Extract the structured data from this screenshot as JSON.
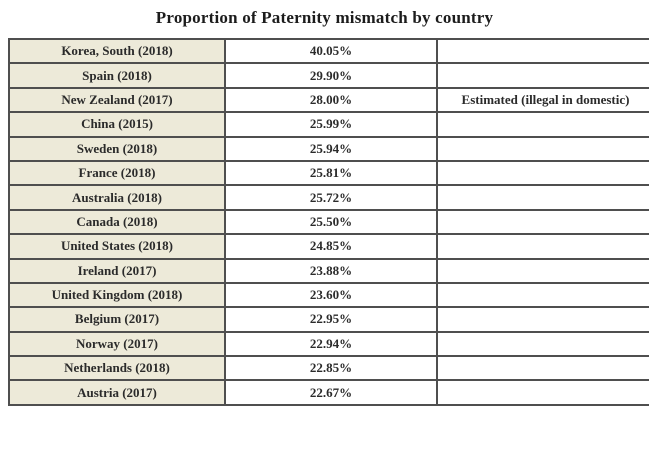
{
  "title": "Proportion of Paternity mismatch by country",
  "table": {
    "rows": [
      {
        "country": "Korea, South (2018)",
        "value": "40.05%",
        "note": ""
      },
      {
        "country": "Spain (2018)",
        "value": "29.90%",
        "note": ""
      },
      {
        "country": "New Zealand (2017)",
        "value": "28.00%",
        "note": "Estimated (illegal in domestic)"
      },
      {
        "country": "China (2015)",
        "value": "25.99%",
        "note": ""
      },
      {
        "country": "Sweden (2018)",
        "value": "25.94%",
        "note": ""
      },
      {
        "country": "France (2018)",
        "value": "25.81%",
        "note": ""
      },
      {
        "country": "Australia (2018)",
        "value": "25.72%",
        "note": ""
      },
      {
        "country": "Canada (2018)",
        "value": "25.50%",
        "note": ""
      },
      {
        "country": "United States (2018)",
        "value": "24.85%",
        "note": ""
      },
      {
        "country": "Ireland (2017)",
        "value": "23.88%",
        "note": ""
      },
      {
        "country": "United Kingdom (2018)",
        "value": "23.60%",
        "note": ""
      },
      {
        "country": "Belgium (2017)",
        "value": "22.95%",
        "note": ""
      },
      {
        "country": "Norway (2017)",
        "value": "22.94%",
        "note": ""
      },
      {
        "country": "Netherlands (2018)",
        "value": "22.85%",
        "note": ""
      },
      {
        "country": "Austria (2017)",
        "value": "22.67%",
        "note": ""
      }
    ]
  },
  "colors": {
    "country_column_bg": "#edead9",
    "grid_border": "#4f4f4f",
    "text": "#2b2b2b",
    "page_bg": "#ffffff"
  },
  "chart_data": {
    "type": "table",
    "title": "Proportion of Paternity mismatch by country",
    "categories": [
      "Korea, South (2018)",
      "Spain (2018)",
      "New Zealand (2017)",
      "China (2015)",
      "Sweden (2018)",
      "France (2018)",
      "Australia (2018)",
      "Canada (2018)",
      "United States (2018)",
      "Ireland (2017)",
      "United Kingdom (2018)",
      "Belgium (2017)",
      "Norway (2017)",
      "Netherlands (2018)",
      "Austria (2017)"
    ],
    "values": [
      40.05,
      29.9,
      28.0,
      25.99,
      25.94,
      25.81,
      25.72,
      25.5,
      24.85,
      23.88,
      23.6,
      22.95,
      22.94,
      22.85,
      22.67
    ],
    "value_unit": "%",
    "annotations": [
      {
        "row": "New Zealand (2017)",
        "note": "Estimated (illegal in domestic)"
      }
    ],
    "legend_position": "none",
    "grid": true
  }
}
